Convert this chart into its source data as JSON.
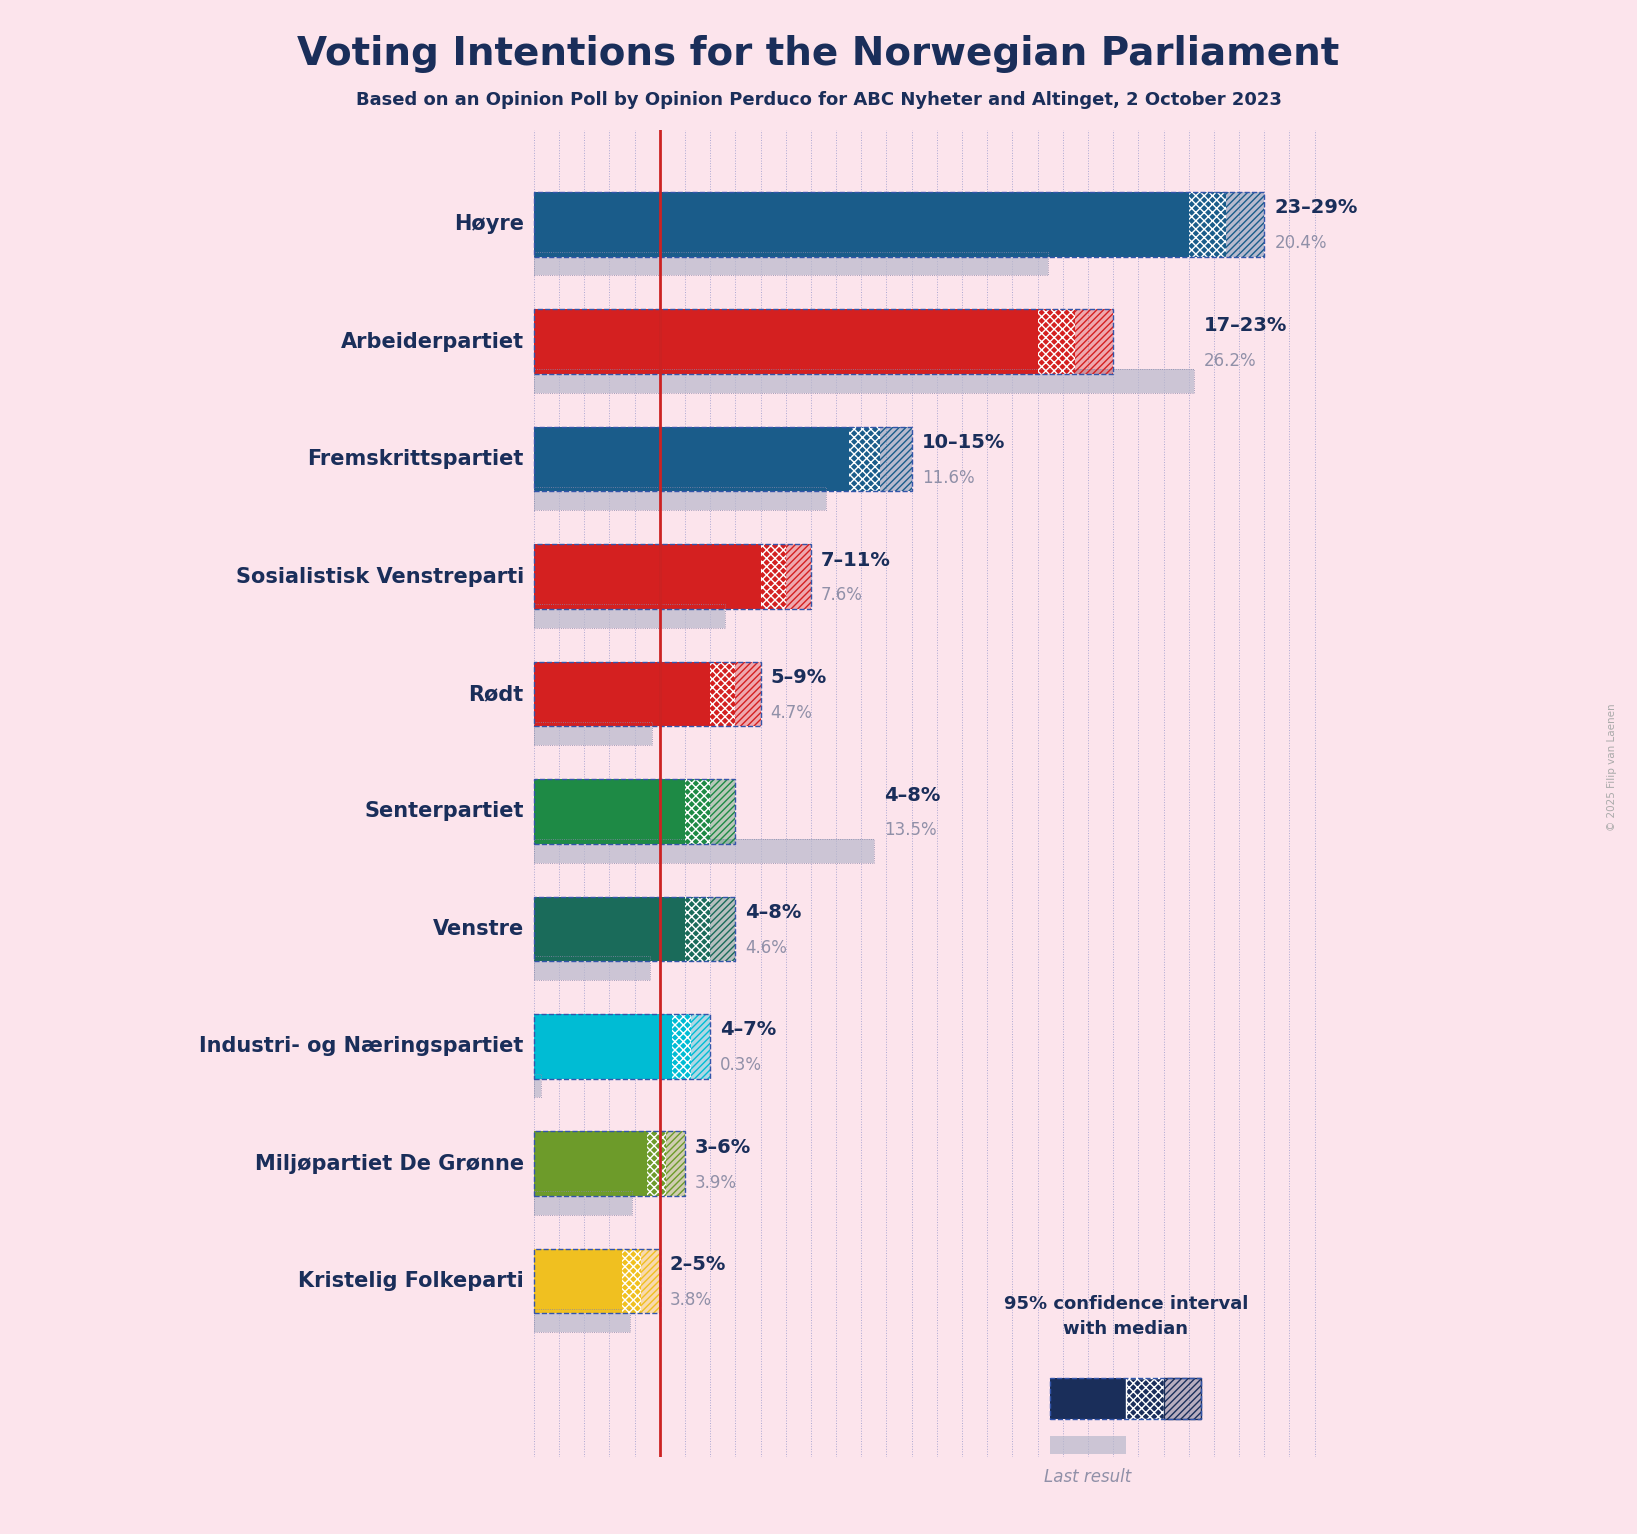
{
  "title": "Voting Intentions for the Norwegian Parliament",
  "subtitle": "Based on an Opinion Poll by Opinion Perduco for ABC Nyheter and Altinget, 2 October 2023",
  "background_color": "#fce4ec",
  "parties": [
    {
      "name": "Høyre",
      "ci_low": 23,
      "ci_high": 29,
      "median": 26,
      "last_result": 20.4,
      "color": "#1a5c8a",
      "label": "23–29%",
      "last_label": "20.4%"
    },
    {
      "name": "Arbeiderpartiet",
      "ci_low": 17,
      "ci_high": 23,
      "median": 20,
      "last_result": 26.2,
      "color": "#d42020",
      "label": "17–23%",
      "last_label": "26.2%"
    },
    {
      "name": "Fremskrittspartiet",
      "ci_low": 10,
      "ci_high": 15,
      "median": 12.5,
      "last_result": 11.6,
      "color": "#1a5c8a",
      "label": "10–15%",
      "last_label": "11.6%"
    },
    {
      "name": "Sosialistisk Venstreparti",
      "ci_low": 7,
      "ci_high": 11,
      "median": 9,
      "last_result": 7.6,
      "color": "#d42020",
      "label": "7–11%",
      "last_label": "7.6%"
    },
    {
      "name": "Rødt",
      "ci_low": 5,
      "ci_high": 9,
      "median": 7,
      "last_result": 4.7,
      "color": "#d42020",
      "label": "5–9%",
      "last_label": "4.7%"
    },
    {
      "name": "Senterpartiet",
      "ci_low": 4,
      "ci_high": 8,
      "median": 6,
      "last_result": 13.5,
      "color": "#1e8a45",
      "label": "4–8%",
      "last_label": "13.5%"
    },
    {
      "name": "Venstre",
      "ci_low": 4,
      "ci_high": 8,
      "median": 6,
      "last_result": 4.6,
      "color": "#1a6b5a",
      "label": "4–8%",
      "last_label": "4.6%"
    },
    {
      "name": "Industri- og Næringspartiet",
      "ci_low": 4,
      "ci_high": 7,
      "median": 5.5,
      "last_result": 0.3,
      "color": "#00bcd4",
      "label": "4–7%",
      "last_label": "0.3%"
    },
    {
      "name": "Miljøpartiet De Grønne",
      "ci_low": 3,
      "ci_high": 6,
      "median": 4.5,
      "last_result": 3.9,
      "color": "#6d9b2a",
      "label": "3–6%",
      "last_label": "3.9%"
    },
    {
      "name": "Kristelig Folkeparti",
      "ci_low": 2,
      "ci_high": 5,
      "median": 3.5,
      "last_result": 3.8,
      "color": "#f0c020",
      "label": "2–5%",
      "last_label": "3.8%"
    }
  ],
  "x_max": 31,
  "title_color": "#1a2e5a",
  "subtitle_color": "#1a2e5a",
  "label_color": "#1a2e5a",
  "last_result_color": "#9090a8",
  "grid_color": "#9999cc",
  "median_line_color": "#cc2222",
  "copyright_text": "© 2025 Filip van Laenen",
  "bar_height": 0.55,
  "last_bar_height": 0.2,
  "last_bar_color": "#b8b8cc",
  "last_bar_alpha": 0.7
}
